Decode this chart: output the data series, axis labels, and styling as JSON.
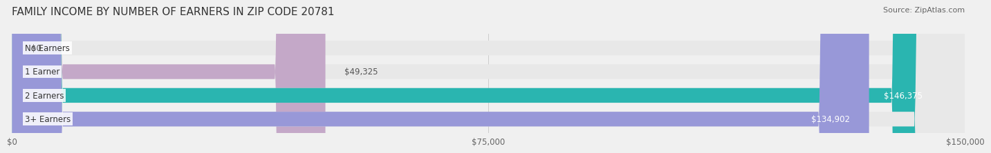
{
  "title": "FAMILY INCOME BY NUMBER OF EARNERS IN ZIP CODE 20781",
  "source": "Source: ZipAtlas.com",
  "categories": [
    "No Earners",
    "1 Earner",
    "2 Earners",
    "3+ Earners"
  ],
  "values": [
    0,
    49325,
    146375,
    134902
  ],
  "bar_colors": [
    "#a8c8e8",
    "#c4a8c8",
    "#2ab5b0",
    "#9898d8"
  ],
  "bar_labels": [
    "$0",
    "$49,325",
    "$146,375",
    "$134,902"
  ],
  "label_colors": [
    "#555555",
    "#555555",
    "#ffffff",
    "#ffffff"
  ],
  "xlim": [
    0,
    150000
  ],
  "xticks": [
    0,
    75000,
    150000
  ],
  "xticklabels": [
    "$0",
    "$75,000",
    "$150,000"
  ],
  "bg_color": "#f0f0f0",
  "bar_bg_color": "#e8e8e8",
  "title_fontsize": 11,
  "source_fontsize": 8
}
